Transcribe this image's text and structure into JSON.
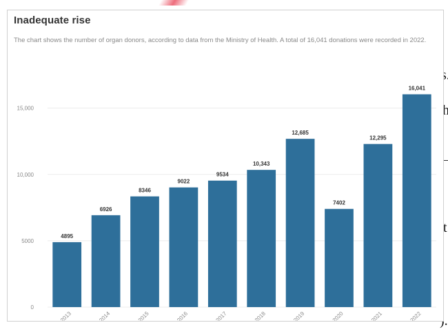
{
  "background_article": {
    "fragments": [
      "s.",
      "h",
      "t",
      ")."
    ]
  },
  "colors": {
    "bar": "#2e6f9a",
    "accent": "#e83c50"
  },
  "chart_data": {
    "type": "bar",
    "title": "Inadequate rise",
    "subtitle": "The chart shows the number of organ donors, according to data from the Ministry of Health. A total of 16,041 donations were recorded in 2022.",
    "xlabel": "",
    "ylabel": "",
    "ylim": [
      0,
      18000
    ],
    "yticks": [
      0,
      5000,
      10000,
      15000
    ],
    "ytick_labels": [
      "0",
      "5000",
      "10,000",
      "15,000"
    ],
    "grid": true,
    "categories": [
      "2013",
      "2014",
      "2015",
      "2016",
      "2017",
      "2018",
      "2019",
      "2020",
      "2021",
      "2022"
    ],
    "values": [
      4895,
      6926,
      8346,
      9022,
      9534,
      10343,
      12685,
      7402,
      12295,
      16041
    ],
    "data_labels": [
      "4895",
      "6926",
      "8346",
      "9022",
      "9534",
      "10,343",
      "12,685",
      "7402",
      "12,295",
      "16,041"
    ]
  }
}
